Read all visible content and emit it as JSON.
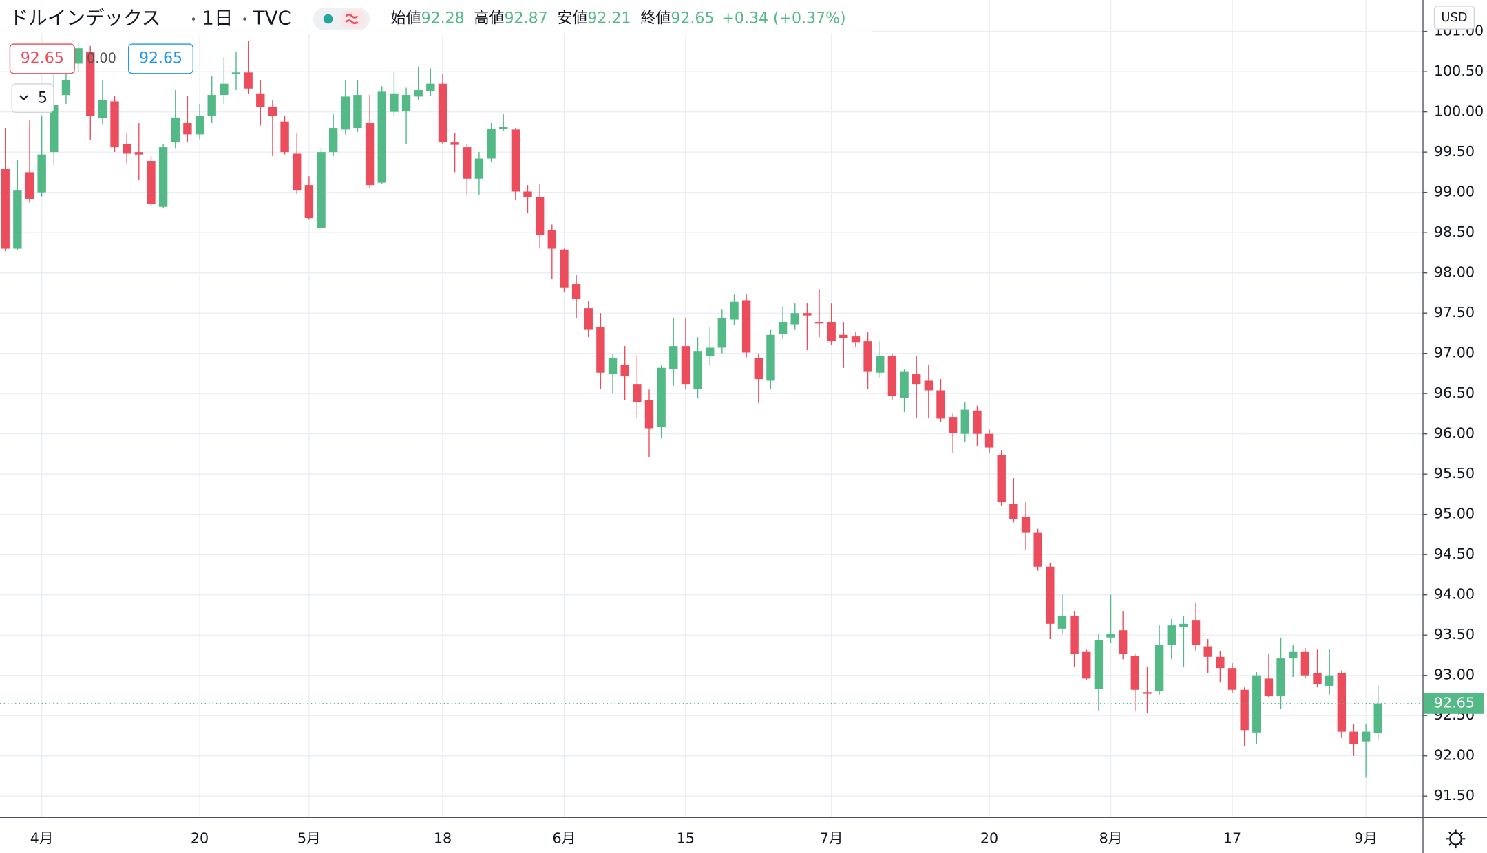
{
  "chart_data": {
    "type": "candlestick",
    "title": "ドルインデックス",
    "interval": "1日",
    "source": "TVC",
    "ohlc_labels": [
      "始値",
      "高値",
      "安値",
      "終値"
    ],
    "change_label": "+0.34 (+0.37%)",
    "currency": "USD",
    "categories": [
      null,
      null,
      null,
      "4月",
      null,
      null,
      null,
      null,
      null,
      null,
      null,
      null,
      null,
      null,
      null,
      null,
      "20",
      null,
      null,
      null,
      null,
      null,
      null,
      null,
      null,
      "5月",
      null,
      null,
      null,
      null,
      null,
      null,
      null,
      null,
      null,
      null,
      "18",
      null,
      null,
      null,
      null,
      null,
      null,
      null,
      null,
      null,
      "6月",
      null,
      null,
      null,
      null,
      null,
      null,
      null,
      null,
      null,
      "15",
      null,
      null,
      null,
      null,
      null,
      null,
      null,
      null,
      null,
      null,
      null,
      "7月",
      null,
      null,
      null,
      null,
      null,
      null,
      null,
      null,
      null,
      null,
      null,
      null,
      "20",
      null,
      null,
      null,
      null,
      null,
      null,
      null,
      null,
      null,
      "8月",
      null,
      null,
      null,
      null,
      null,
      null,
      null,
      null,
      null,
      "17",
      null,
      null,
      null,
      null,
      null,
      null,
      null,
      null,
      null,
      null,
      "9月",
      null
    ],
    "open": [
      99.29,
      98.3,
      99.25,
      99.0,
      99.5,
      100.21,
      100.6,
      100.74,
      99.92,
      100.13,
      99.6,
      99.5,
      99.39,
      98.82,
      99.62,
      99.86,
      99.72,
      99.95,
      100.21,
      100.47,
      100.49,
      100.23,
      100.06,
      99.88,
      99.48,
      99.09,
      98.56,
      99.5,
      99.78,
      99.8,
      99.86,
      99.12,
      100.0,
      100.01,
      100.19,
      100.26,
      100.35,
      99.62,
      99.56,
      99.17,
      99.42,
      99.79,
      99.78,
      99.01,
      98.94,
      98.53,
      98.29,
      97.86,
      97.56,
      97.33,
      96.74,
      96.86,
      96.62,
      96.42,
      96.09,
      96.8,
      97.09,
      96.56,
      96.97,
      97.07,
      97.42,
      97.66,
      96.94,
      96.66,
      97.24,
      97.36,
      97.5,
      97.39,
      97.39,
      97.23,
      97.21,
      97.15,
      96.76,
      96.97,
      96.45,
      96.74,
      96.66,
      96.54,
      96.21,
      96.0,
      96.29,
      96.0,
      95.74,
      95.13,
      94.97,
      94.77,
      94.35,
      93.58,
      93.74,
      93.29,
      92.83,
      93.47,
      93.56,
      93.24,
      92.79,
      92.8,
      93.38,
      93.6,
      93.68,
      93.36,
      93.23,
      93.09,
      92.82,
      92.29,
      92.96,
      92.74,
      93.21,
      93.29,
      93.03,
      92.87,
      93.03,
      92.3,
      92.18,
      92.28
    ],
    "high": [
      99.8,
      99.4,
      99.9,
      99.95,
      100.6,
      100.7,
      100.85,
      100.82,
      100.4,
      100.2,
      99.74,
      99.86,
      99.45,
      99.6,
      100.27,
      100.2,
      100.1,
      100.45,
      100.68,
      100.74,
      100.88,
      100.39,
      100.15,
      99.95,
      99.74,
      99.2,
      99.55,
      99.98,
      100.39,
      100.39,
      100.21,
      100.32,
      100.5,
      100.3,
      100.56,
      100.54,
      100.47,
      99.74,
      99.6,
      99.5,
      99.86,
      99.98,
      99.8,
      99.09,
      99.1,
      98.6,
      98.3,
      97.97,
      97.65,
      97.5,
      96.99,
      97.09,
      96.98,
      96.55,
      96.85,
      97.44,
      97.44,
      97.2,
      97.33,
      97.55,
      97.73,
      97.74,
      97.0,
      97.3,
      97.58,
      97.62,
      97.62,
      97.8,
      97.62,
      97.39,
      97.27,
      97.27,
      97.15,
      97.0,
      96.8,
      96.97,
      96.86,
      96.68,
      96.25,
      96.39,
      96.35,
      96.05,
      95.8,
      95.45,
      95.15,
      94.82,
      94.4,
      94.0,
      93.8,
      93.32,
      93.52,
      94.0,
      93.8,
      93.27,
      93.1,
      93.62,
      93.7,
      93.74,
      93.9,
      93.45,
      93.3,
      93.15,
      92.85,
      93.04,
      93.27,
      93.47,
      93.38,
      93.34,
      93.32,
      93.33,
      93.06,
      92.4,
      92.4,
      92.87
    ],
    "low": [
      98.27,
      98.28,
      98.87,
      98.95,
      99.34,
      100.1,
      100.5,
      99.65,
      99.85,
      99.5,
      99.36,
      99.15,
      98.83,
      98.8,
      99.55,
      99.62,
      99.66,
      99.86,
      100.1,
      100.27,
      100.22,
      99.83,
      99.45,
      99.47,
      98.98,
      98.66,
      98.55,
      99.45,
      99.72,
      99.75,
      99.05,
      99.1,
      99.95,
      99.6,
      100.15,
      100.2,
      99.6,
      99.25,
      98.97,
      98.97,
      99.38,
      99.76,
      98.9,
      98.74,
      98.3,
      97.92,
      97.76,
      97.44,
      97.2,
      96.56,
      96.5,
      96.42,
      96.2,
      95.71,
      95.95,
      96.6,
      96.55,
      96.44,
      96.85,
      97.0,
      97.35,
      96.95,
      96.38,
      96.56,
      97.18,
      97.3,
      97.04,
      97.2,
      97.1,
      96.82,
      97.08,
      96.56,
      96.7,
      96.42,
      96.27,
      96.2,
      96.2,
      96.15,
      95.76,
      95.9,
      95.85,
      95.76,
      95.1,
      94.9,
      94.56,
      94.3,
      93.45,
      93.52,
      93.1,
      92.94,
      92.56,
      93.4,
      93.2,
      92.56,
      92.53,
      92.76,
      93.2,
      93.1,
      93.3,
      93.03,
      92.91,
      92.78,
      92.12,
      92.15,
      92.73,
      92.58,
      92.98,
      92.96,
      92.85,
      92.76,
      92.22,
      92.0,
      91.73,
      92.21
    ],
    "close": [
      98.3,
      99.03,
      98.92,
      99.47,
      100.09,
      100.39,
      100.79,
      99.95,
      100.15,
      99.56,
      99.48,
      99.47,
      98.86,
      99.56,
      99.93,
      99.72,
      99.95,
      100.21,
      100.35,
      100.49,
      100.29,
      100.06,
      99.95,
      99.5,
      99.03,
      98.68,
      99.5,
      99.8,
      100.19,
      100.21,
      99.09,
      100.25,
      100.23,
      100.21,
      100.27,
      100.35,
      99.62,
      99.59,
      99.17,
      99.42,
      99.79,
      99.81,
      99.01,
      98.94,
      98.47,
      98.3,
      97.82,
      97.68,
      97.3,
      96.76,
      96.94,
      96.72,
      96.39,
      96.07,
      96.82,
      97.09,
      96.62,
      97.03,
      97.07,
      97.44,
      97.64,
      97.01,
      96.68,
      97.23,
      97.39,
      97.5,
      97.47,
      97.37,
      97.15,
      97.19,
      97.14,
      96.77,
      96.97,
      96.47,
      96.77,
      96.62,
      96.54,
      96.19,
      96.01,
      96.3,
      96.0,
      95.83,
      95.15,
      94.94,
      94.77,
      94.35,
      93.64,
      93.74,
      93.27,
      92.96,
      93.44,
      93.51,
      93.27,
      92.82,
      92.77,
      93.38,
      93.62,
      93.64,
      93.38,
      93.23,
      93.09,
      92.82,
      92.32,
      93.0,
      92.74,
      93.21,
      93.29,
      93.0,
      92.89,
      93.0,
      92.3,
      92.15,
      92.3,
      92.65
    ],
    "up_color": "#53b987",
    "down_color": "#eb4d5c",
    "ylim": [
      91.24,
      101.39
    ],
    "yticks": [
      {
        "value": 91.5,
        "label": "91.50"
      },
      {
        "value": 92,
        "label": "92.00"
      },
      {
        "value": 92.5,
        "label": "92.50"
      },
      {
        "value": 93,
        "label": "93.00"
      },
      {
        "value": 93.5,
        "label": "93.50"
      },
      {
        "value": 94,
        "label": "94.00"
      },
      {
        "value": 94.5,
        "label": "94.50"
      },
      {
        "value": 95,
        "label": "95.00"
      },
      {
        "value": 95.5,
        "label": "95.50"
      },
      {
        "value": 96,
        "label": "96.00"
      },
      {
        "value": 96.5,
        "label": "96.50"
      },
      {
        "value": 97,
        "label": "97.00"
      },
      {
        "value": 97.5,
        "label": "97.50"
      },
      {
        "value": 98,
        "label": "98.00"
      },
      {
        "value": 98.5,
        "label": "98.50"
      },
      {
        "value": 99,
        "label": "99.00"
      },
      {
        "value": 99.5,
        "label": "99.50"
      },
      {
        "value": 100,
        "label": "100.00"
      },
      {
        "value": 100.5,
        "label": "100.50"
      },
      {
        "value": 101,
        "label": "101.00"
      }
    ],
    "grid": true
  },
  "trade_panel": {
    "sell": "92.65",
    "spread": "0.00",
    "buy": "92.65",
    "interval_selector": "5"
  }
}
